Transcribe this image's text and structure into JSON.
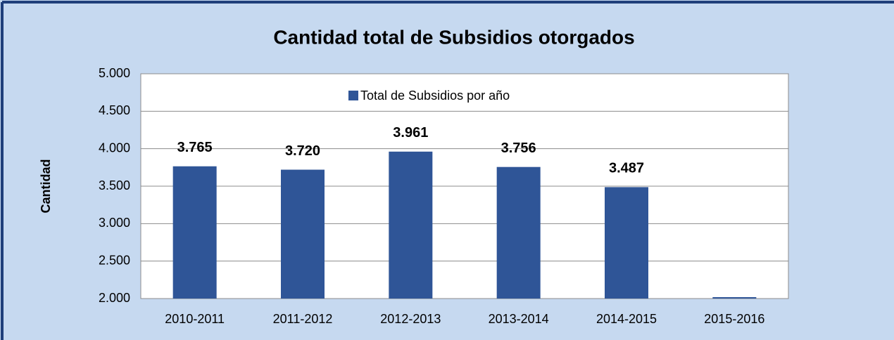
{
  "chart_data": {
    "type": "bar",
    "title": "Cantidad total de Subsidios otorgados",
    "y_label": "Cantidad",
    "categories": [
      "2010-2011",
      "2011-2012",
      "2012-2013",
      "2013-2014",
      "2014-2015",
      "2015-2016"
    ],
    "series": [
      {
        "name": "Total de Subsidios por año",
        "color": "#2f5597",
        "values": [
          3765,
          3720,
          3961,
          3756,
          3487,
          2000
        ],
        "value_labels": [
          "3.765",
          "3.720",
          "3.961",
          "3.756",
          "3.487",
          null
        ]
      }
    ],
    "ylim": [
      2000,
      5000
    ],
    "yticks": [
      {
        "value": 2000,
        "label": "2.000"
      },
      {
        "value": 2500,
        "label": "2.500"
      },
      {
        "value": 3000,
        "label": "3.000"
      },
      {
        "value": 3500,
        "label": "3.500"
      },
      {
        "value": 4000,
        "label": "4.000"
      },
      {
        "value": 4500,
        "label": "4.500"
      },
      {
        "value": 5000,
        "label": "5.000"
      }
    ],
    "grid": true,
    "legend": "top"
  }
}
